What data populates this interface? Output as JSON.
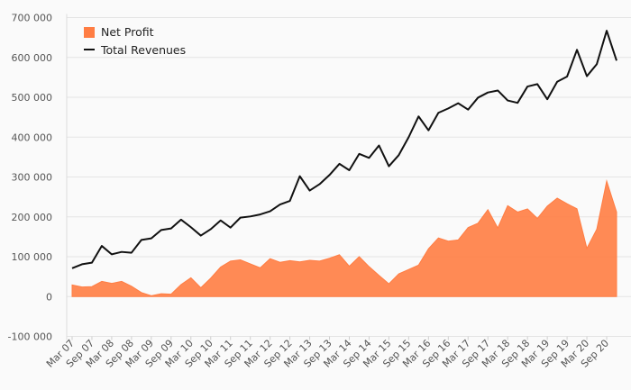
{
  "chart_data": {
    "type": "area",
    "y_ticks": [
      "700 000",
      "600 000",
      "500 000",
      "400 000",
      "300 000",
      "200 000",
      "100 000",
      "0",
      "-100 000"
    ],
    "y_tick_values": [
      700000,
      600000,
      500000,
      400000,
      300000,
      200000,
      100000,
      0,
      -100000
    ],
    "ylim": [
      -100000,
      700000
    ],
    "x_tick_labels": [
      "Mar 07",
      "Sep 07",
      "Mar 08",
      "Sep 08",
      "Mar 09",
      "Sep 09",
      "Mar 10",
      "Sep 10",
      "Mar 11",
      "Sep 11",
      "Mar 12",
      "Sep 12",
      "Mar 13",
      "Sep 13",
      "Mar 14",
      "Sep 14",
      "Mar 15",
      "Sep 15",
      "Mar 16",
      "Sep 16",
      "Mar 17",
      "Sep 17",
      "Mar 18",
      "Sep 18",
      "Mar 19",
      "Sep 19",
      "Mar 20",
      "Sep 20"
    ],
    "legend_position": "top-left",
    "series": [
      {
        "name": "Net Profit",
        "kind": "area",
        "color": "#ff7d43",
        "values": [
          29000,
          24000,
          25000,
          38000,
          33000,
          38000,
          26000,
          10000,
          2000,
          7000,
          6000,
          30000,
          47000,
          22000,
          46000,
          74000,
          89000,
          92000,
          82000,
          72000,
          95000,
          86000,
          90000,
          87000,
          91000,
          89000,
          96000,
          105000,
          76000,
          100000,
          75000,
          53000,
          32000,
          57000,
          68000,
          79000,
          120000,
          147000,
          139000,
          142000,
          173000,
          184000,
          218000,
          172000,
          228000,
          212000,
          220000,
          196000,
          227000,
          247000,
          233000,
          220000,
          121000,
          169000,
          290000,
          212000
        ]
      },
      {
        "name": "Total Revenues",
        "kind": "line",
        "color": "#111111",
        "values": [
          71000,
          81000,
          85000,
          127000,
          106000,
          112000,
          110000,
          142000,
          146000,
          167000,
          171000,
          193000,
          174000,
          153000,
          169000,
          191000,
          173000,
          198000,
          201000,
          206000,
          214000,
          231000,
          240000,
          302000,
          266000,
          282000,
          305000,
          333000,
          317000,
          358000,
          348000,
          379000,
          327000,
          355000,
          400000,
          452000,
          417000,
          461000,
          472000,
          485000,
          469000,
          499000,
          512000,
          517000,
          492000,
          486000,
          527000,
          533000,
          495000,
          539000,
          552000,
          619000,
          553000,
          583000,
          667000,
          592000
        ]
      }
    ]
  }
}
